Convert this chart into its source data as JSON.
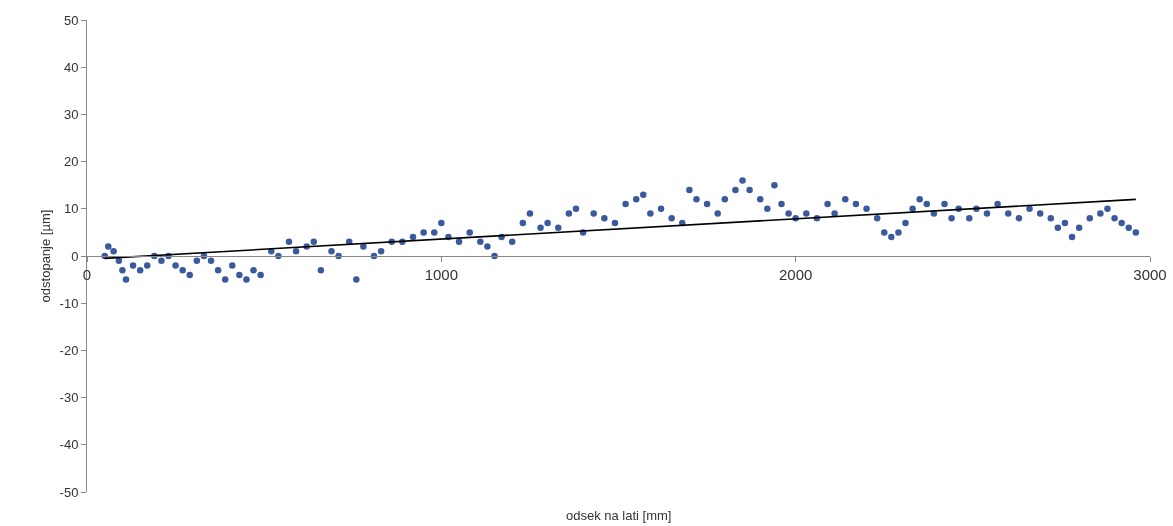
{
  "chart_data": {
    "type": "scatter",
    "xlabel": "odsek na lati [mm]",
    "ylabel": "odstopanje [µm]",
    "xlim": [
      0,
      3000
    ],
    "xticks": [
      0,
      1000,
      2000,
      3000
    ],
    "ylim": [
      -50,
      50
    ],
    "yticks": [
      -50,
      -40,
      -30,
      -20,
      -10,
      0,
      10,
      20,
      30,
      40,
      50
    ],
    "grid": false,
    "marker": "circle",
    "series": [
      {
        "color": "#3b5a9d",
        "x": [
          50,
          60,
          75,
          90,
          100,
          110,
          130,
          150,
          170,
          190,
          210,
          230,
          250,
          270,
          290,
          310,
          330,
          350,
          370,
          390,
          410,
          430,
          450,
          470,
          490,
          520,
          540,
          570,
          590,
          620,
          640,
          660,
          690,
          710,
          740,
          760,
          780,
          810,
          830,
          860,
          890,
          920,
          950,
          980,
          1000,
          1020,
          1050,
          1080,
          1110,
          1130,
          1150,
          1170,
          1200,
          1230,
          1250,
          1280,
          1300,
          1330,
          1360,
          1380,
          1400,
          1430,
          1460,
          1490,
          1520,
          1550,
          1570,
          1590,
          1620,
          1650,
          1680,
          1700,
          1720,
          1750,
          1780,
          1800,
          1830,
          1850,
          1870,
          1900,
          1920,
          1940,
          1960,
          1980,
          2000,
          2030,
          2060,
          2090,
          2110,
          2140,
          2170,
          2200,
          2230,
          2250,
          2270,
          2290,
          2310,
          2330,
          2350,
          2370,
          2390,
          2420,
          2440,
          2460,
          2490,
          2510,
          2540,
          2570,
          2600,
          2630,
          2660,
          2690,
          2720,
          2740,
          2760,
          2780,
          2800,
          2830,
          2860,
          2880,
          2900,
          2920,
          2940,
          2960
        ],
        "values": [
          0,
          2,
          1,
          -1,
          -3,
          -5,
          -2,
          -3,
          -2,
          0,
          -1,
          0,
          -2,
          -3,
          -4,
          -1,
          0,
          -1,
          -3,
          -5,
          -2,
          -4,
          -5,
          -3,
          -4,
          1,
          0,
          3,
          1,
          2,
          3,
          -3,
          1,
          0,
          3,
          -5,
          2,
          0,
          1,
          3,
          3,
          4,
          5,
          5,
          7,
          4,
          3,
          5,
          3,
          2,
          0,
          4,
          3,
          7,
          9,
          6,
          7,
          6,
          9,
          10,
          5,
          9,
          8,
          7,
          11,
          12,
          13,
          9,
          10,
          8,
          7,
          14,
          12,
          11,
          9,
          12,
          14,
          16,
          14,
          12,
          10,
          15,
          11,
          9,
          8,
          9,
          8,
          11,
          9,
          12,
          11,
          10,
          8,
          5,
          4,
          5,
          7,
          10,
          12,
          11,
          9,
          11,
          8,
          10,
          8,
          10,
          9,
          11,
          9,
          8,
          10,
          9,
          8,
          6,
          7,
          4,
          6,
          8,
          9,
          10,
          8,
          7,
          6,
          5
        ]
      },
      {
        "type": "line",
        "color": "#000000",
        "marker": "none",
        "x": [
          50,
          2960
        ],
        "values": [
          -0.5,
          12
        ]
      }
    ]
  }
}
